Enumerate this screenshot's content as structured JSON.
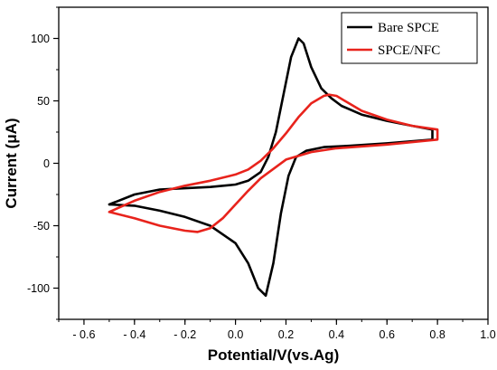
{
  "chart_data": {
    "type": "line",
    "title": "",
    "xlabel": "Potential/V(vs.Ag)",
    "ylabel": "Current (μA)",
    "xlim": [
      -0.7,
      1.0
    ],
    "ylim": [
      -125,
      125
    ],
    "x_ticks": [
      -0.6,
      -0.4,
      -0.2,
      0.0,
      0.2,
      0.4,
      0.6,
      0.8,
      1.0
    ],
    "x_tick_labels": [
      "- 0.6",
      "- 0.4",
      "- 0.2",
      "0.0",
      "0.2",
      "0.4",
      "0.6",
      "0.8",
      "1.0"
    ],
    "y_ticks": [
      -100,
      -50,
      0,
      50,
      100
    ],
    "y_tick_labels": [
      "-100",
      "-50",
      "0",
      "50",
      "100"
    ],
    "grid": false,
    "legend_position": "top-right",
    "series": [
      {
        "name": "Bare SPCE",
        "color": "#000000",
        "points": [
          [
            -0.5,
            -33
          ],
          [
            -0.4,
            -25
          ],
          [
            -0.3,
            -21
          ],
          [
            -0.2,
            -20
          ],
          [
            -0.1,
            -19
          ],
          [
            0.0,
            -17
          ],
          [
            0.05,
            -14
          ],
          [
            0.1,
            -7
          ],
          [
            0.13,
            5
          ],
          [
            0.16,
            25
          ],
          [
            0.19,
            55
          ],
          [
            0.22,
            85
          ],
          [
            0.25,
            100
          ],
          [
            0.27,
            96
          ],
          [
            0.3,
            77
          ],
          [
            0.34,
            60
          ],
          [
            0.38,
            52
          ],
          [
            0.42,
            46
          ],
          [
            0.5,
            39
          ],
          [
            0.6,
            34
          ],
          [
            0.7,
            30
          ],
          [
            0.78,
            27
          ],
          [
            0.78,
            19
          ],
          [
            0.6,
            16
          ],
          [
            0.45,
            14
          ],
          [
            0.35,
            13
          ],
          [
            0.28,
            10
          ],
          [
            0.24,
            5
          ],
          [
            0.21,
            -10
          ],
          [
            0.18,
            -40
          ],
          [
            0.15,
            -80
          ],
          [
            0.12,
            -106
          ],
          [
            0.09,
            -100
          ],
          [
            0.05,
            -80
          ],
          [
            0.0,
            -64
          ],
          [
            -0.1,
            -50
          ],
          [
            -0.2,
            -43
          ],
          [
            -0.3,
            -38
          ],
          [
            -0.4,
            -34
          ],
          [
            -0.5,
            -33
          ]
        ]
      },
      {
        "name": "SPCE/NFC",
        "color": "#e8231c",
        "points": [
          [
            -0.5,
            -39
          ],
          [
            -0.4,
            -30
          ],
          [
            -0.3,
            -23
          ],
          [
            -0.2,
            -18
          ],
          [
            -0.1,
            -14
          ],
          [
            0.0,
            -9
          ],
          [
            0.05,
            -5
          ],
          [
            0.1,
            2
          ],
          [
            0.15,
            12
          ],
          [
            0.2,
            24
          ],
          [
            0.25,
            37
          ],
          [
            0.3,
            48
          ],
          [
            0.35,
            54
          ],
          [
            0.37,
            55
          ],
          [
            0.4,
            54
          ],
          [
            0.45,
            48
          ],
          [
            0.5,
            42
          ],
          [
            0.6,
            35
          ],
          [
            0.7,
            30
          ],
          [
            0.8,
            27
          ],
          [
            0.8,
            19
          ],
          [
            0.6,
            15
          ],
          [
            0.4,
            12
          ],
          [
            0.3,
            9
          ],
          [
            0.2,
            3
          ],
          [
            0.1,
            -12
          ],
          [
            0.05,
            -22
          ],
          [
            0.0,
            -33
          ],
          [
            -0.05,
            -44
          ],
          [
            -0.1,
            -52
          ],
          [
            -0.15,
            -55
          ],
          [
            -0.2,
            -54
          ],
          [
            -0.3,
            -50
          ],
          [
            -0.4,
            -44
          ],
          [
            -0.5,
            -39
          ]
        ]
      }
    ]
  }
}
